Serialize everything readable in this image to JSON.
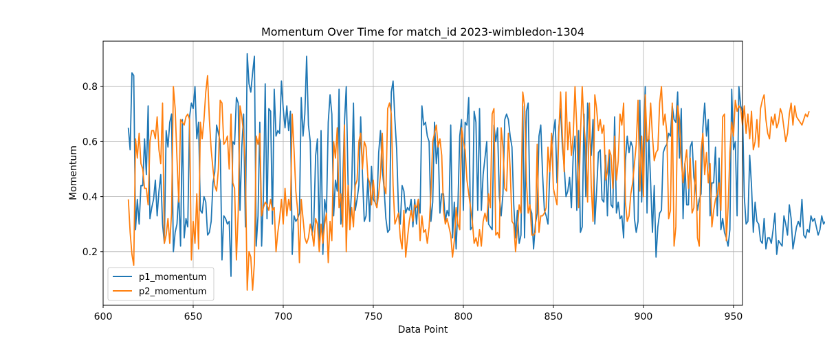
{
  "chart_data": {
    "type": "line",
    "title": "Momentum Over Time for match_id 2023-wimbledon-1304",
    "xlabel": "Data Point",
    "ylabel": "Momentum",
    "xlim": [
      600,
      955
    ],
    "ylim": [
      0.005,
      0.965
    ],
    "xticks": [
      600,
      650,
      700,
      750,
      800,
      850,
      900,
      950
    ],
    "yticks": [
      0.2,
      0.4,
      0.6,
      0.8
    ],
    "grid": true,
    "legend_position": "lower-left",
    "x_start": 614,
    "series": [
      {
        "name": "p1_momentum",
        "color": "#1f77b4",
        "values": [
          0.65,
          0.57,
          0.85,
          0.84,
          0.28,
          0.39,
          0.3,
          0.44,
          0.44,
          0.61,
          0.48,
          0.73,
          0.32,
          0.36,
          0.39,
          0.46,
          0.33,
          0.42,
          0.48,
          0.3,
          0.23,
          0.64,
          0.58,
          0.67,
          0.7,
          0.2,
          0.27,
          0.3,
          0.41,
          0.22,
          0.68,
          0.25,
          0.32,
          0.29,
          0.69,
          0.74,
          0.72,
          0.8,
          0.61,
          0.67,
          0.35,
          0.34,
          0.4,
          0.38,
          0.26,
          0.27,
          0.31,
          0.45,
          0.49,
          0.66,
          0.63,
          0.6,
          0.17,
          0.33,
          0.32,
          0.3,
          0.31,
          0.11,
          0.6,
          0.59,
          0.76,
          0.74,
          0.35,
          0.58,
          0.7,
          0.29,
          0.92,
          0.81,
          0.78,
          0.85,
          0.91,
          0.22,
          0.33,
          0.67,
          0.22,
          0.4,
          0.81,
          0.32,
          0.72,
          0.71,
          0.3,
          0.79,
          0.62,
          0.64,
          0.63,
          0.82,
          0.72,
          0.65,
          0.73,
          0.64,
          0.71,
          0.19,
          0.33,
          0.31,
          0.32,
          0.34,
          0.76,
          0.62,
          0.7,
          0.91,
          0.66,
          0.6,
          0.26,
          0.31,
          0.55,
          0.61,
          0.23,
          0.64,
          0.19,
          0.39,
          0.34,
          0.67,
          0.77,
          0.7,
          0.33,
          0.46,
          0.42,
          0.79,
          0.3,
          0.44,
          0.67,
          0.8,
          0.45,
          0.31,
          0.43,
          0.74,
          0.35,
          0.39,
          0.44,
          0.69,
          0.48,
          0.31,
          0.33,
          0.47,
          0.31,
          0.51,
          0.39,
          0.38,
          0.36,
          0.56,
          0.64,
          0.5,
          0.43,
          0.32,
          0.27,
          0.28,
          0.78,
          0.82,
          0.68,
          0.57,
          0.35,
          0.3,
          0.44,
          0.42,
          0.34,
          0.36,
          0.35,
          0.39,
          0.29,
          0.39,
          0.3,
          0.39,
          0.34,
          0.73,
          0.66,
          0.67,
          0.62,
          0.6,
          0.31,
          0.38,
          0.67,
          0.52,
          0.6,
          0.34,
          0.41,
          0.41,
          0.31,
          0.35,
          0.33,
          0.66,
          0.25,
          0.38,
          0.21,
          0.37,
          0.62,
          0.68,
          0.35,
          0.67,
          0.66,
          0.76,
          0.28,
          0.29,
          0.71,
          0.67,
          0.35,
          0.72,
          0.35,
          0.48,
          0.54,
          0.6,
          0.3,
          0.29,
          0.28,
          0.66,
          0.6,
          0.65,
          0.4,
          0.33,
          0.41,
          0.68,
          0.7,
          0.68,
          0.62,
          0.58,
          0.37,
          0.25,
          0.35,
          0.23,
          0.26,
          0.73,
          0.25,
          0.71,
          0.74,
          0.36,
          0.34,
          0.21,
          0.3,
          0.34,
          0.62,
          0.66,
          0.48,
          0.35,
          0.33,
          0.3,
          0.49,
          0.58,
          0.63,
          0.68,
          0.45,
          0.65,
          0.72,
          0.58,
          0.51,
          0.4,
          0.42,
          0.47,
          0.36,
          0.55,
          0.62,
          0.35,
          0.64,
          0.27,
          0.29,
          0.7,
          0.4,
          0.74,
          0.64,
          0.55,
          0.68,
          0.3,
          0.42,
          0.56,
          0.57,
          0.39,
          0.38,
          0.55,
          0.33,
          0.56,
          0.37,
          0.36,
          0.69,
          0.34,
          0.38,
          0.32,
          0.33,
          0.25,
          0.53,
          0.62,
          0.56,
          0.6,
          0.58,
          0.32,
          0.27,
          0.31,
          0.75,
          0.38,
          0.6,
          0.8,
          0.34,
          0.62,
          0.45,
          0.27,
          0.44,
          0.18,
          0.29,
          0.34,
          0.35,
          0.56,
          0.58,
          0.59,
          0.63,
          0.62,
          0.73,
          0.68,
          0.67,
          0.78,
          0.54,
          0.72,
          0.32,
          0.52,
          0.37,
          0.37,
          0.58,
          0.6,
          0.47,
          0.43,
          0.35,
          0.39,
          0.41,
          0.65,
          0.74,
          0.62,
          0.68,
          0.33,
          0.45,
          0.45,
          0.58,
          0.33,
          0.54,
          0.28,
          0.32,
          0.27,
          0.25,
          0.22,
          0.28,
          0.79,
          0.57,
          0.6,
          0.33,
          0.8,
          0.73,
          0.71,
          0.4,
          0.3,
          0.31,
          0.55,
          0.44,
          0.27,
          0.38,
          0.31,
          0.3,
          0.24,
          0.23,
          0.32,
          0.21,
          0.25,
          0.25,
          0.23,
          0.28,
          0.34,
          0.19,
          0.24,
          0.23,
          0.22,
          0.33,
          0.3,
          0.26,
          0.37,
          0.32,
          0.21,
          0.25,
          0.29,
          0.31,
          0.29,
          0.39,
          0.26,
          0.25,
          0.28,
          0.27,
          0.33,
          0.31,
          0.32,
          0.29,
          0.26,
          0.28,
          0.33,
          0.3,
          0.31
        ],
        "values_note": "p1 series starting at x=614, one value per data point"
      },
      {
        "name": "p2_momentum",
        "color": "#ff7f0e",
        "values": [
          0.39,
          0.27,
          0.19,
          0.15,
          0.61,
          0.54,
          0.63,
          0.52,
          0.5,
          0.43,
          0.43,
          0.37,
          0.6,
          0.64,
          0.64,
          0.61,
          0.69,
          0.57,
          0.52,
          0.74,
          0.23,
          0.26,
          0.32,
          0.23,
          0.34,
          0.8,
          0.72,
          0.54,
          0.38,
          0.68,
          0.67,
          0.66,
          0.69,
          0.7,
          0.68,
          0.17,
          0.31,
          0.23,
          0.41,
          0.21,
          0.67,
          0.61,
          0.68,
          0.78,
          0.84,
          0.68,
          0.57,
          0.5,
          0.44,
          0.42,
          0.5,
          0.75,
          0.74,
          0.59,
          0.6,
          0.62,
          0.5,
          0.7,
          0.45,
          0.43,
          0.17,
          0.34,
          0.73,
          0.69,
          0.63,
          0.5,
          0.06,
          0.2,
          0.18,
          0.06,
          0.16,
          0.62,
          0.59,
          0.63,
          0.33,
          0.36,
          0.38,
          0.37,
          0.35,
          0.39,
          0.35,
          0.36,
          0.2,
          0.27,
          0.32,
          0.39,
          0.3,
          0.43,
          0.33,
          0.39,
          0.35,
          0.7,
          0.57,
          0.42,
          0.35,
          0.16,
          0.39,
          0.32,
          0.25,
          0.23,
          0.25,
          0.3,
          0.27,
          0.22,
          0.32,
          0.3,
          0.2,
          0.3,
          0.23,
          0.3,
          0.34,
          0.16,
          0.31,
          0.24,
          0.6,
          0.54,
          0.65,
          0.36,
          0.41,
          0.29,
          0.66,
          0.2,
          0.44,
          0.28,
          0.36,
          0.29,
          0.44,
          0.46,
          0.6,
          0.63,
          0.5,
          0.6,
          0.58,
          0.47,
          0.45,
          0.37,
          0.46,
          0.38,
          0.36,
          0.41,
          0.48,
          0.63,
          0.44,
          0.41,
          0.72,
          0.74,
          0.7,
          0.44,
          0.3,
          0.32,
          0.34,
          0.25,
          0.21,
          0.35,
          0.18,
          0.25,
          0.31,
          0.35,
          0.31,
          0.37,
          0.36,
          0.39,
          0.24,
          0.33,
          0.27,
          0.28,
          0.23,
          0.29,
          0.41,
          0.6,
          0.63,
          0.66,
          0.58,
          0.61,
          0.55,
          0.35,
          0.3,
          0.32,
          0.29,
          0.26,
          0.18,
          0.24,
          0.36,
          0.3,
          0.28,
          0.65,
          0.6,
          0.57,
          0.46,
          0.41,
          0.36,
          0.31,
          0.23,
          0.25,
          0.22,
          0.28,
          0.22,
          0.31,
          0.34,
          0.31,
          0.41,
          0.36,
          0.7,
          0.72,
          0.26,
          0.27,
          0.25,
          0.65,
          0.58,
          0.43,
          0.42,
          0.63,
          0.5,
          0.31,
          0.3,
          0.2,
          0.28,
          0.37,
          0.34,
          0.78,
          0.73,
          0.46,
          0.34,
          0.37,
          0.26,
          0.26,
          0.27,
          0.59,
          0.27,
          0.33,
          0.33,
          0.34,
          0.36,
          0.58,
          0.49,
          0.63,
          0.43,
          0.4,
          0.37,
          0.63,
          0.78,
          0.62,
          0.49,
          0.78,
          0.57,
          0.67,
          0.55,
          0.62,
          0.8,
          0.65,
          0.36,
          0.62,
          0.8,
          0.66,
          0.58,
          0.38,
          0.74,
          0.44,
          0.31,
          0.77,
          0.72,
          0.64,
          0.68,
          0.63,
          0.66,
          0.46,
          0.49,
          0.57,
          0.55,
          0.43,
          0.62,
          0.46,
          0.53,
          0.7,
          0.66,
          0.74,
          0.38,
          0.31,
          0.33,
          0.41,
          0.45,
          0.52,
          0.59,
          0.75,
          0.42,
          0.62,
          0.4,
          0.77,
          0.6,
          0.61,
          0.74,
          0.62,
          0.53,
          0.56,
          0.57,
          0.74,
          0.8,
          0.66,
          0.7,
          0.63,
          0.32,
          0.35,
          0.74,
          0.22,
          0.29,
          0.73,
          0.68,
          0.53,
          0.45,
          0.52,
          0.57,
          0.43,
          0.54,
          0.34,
          0.36,
          0.53,
          0.25,
          0.22,
          0.57,
          0.63,
          0.48,
          0.56,
          0.45,
          0.52,
          0.29,
          0.35,
          0.39,
          0.41,
          0.45,
          0.35,
          0.69,
          0.7,
          0.24,
          0.36,
          0.56,
          0.67,
          0.62,
          0.75,
          0.71,
          0.73,
          0.72,
          0.66,
          0.73,
          0.63,
          0.7,
          0.61,
          0.71,
          0.57,
          0.6,
          0.68,
          0.58,
          0.72,
          0.75,
          0.77,
          0.68,
          0.63,
          0.61,
          0.69,
          0.66,
          0.7,
          0.65,
          0.67,
          0.72,
          0.7,
          0.65,
          0.6,
          0.63,
          0.7,
          0.74,
          0.66,
          0.73,
          0.69,
          0.68,
          0.67,
          0.66,
          0.68,
          0.7,
          0.69,
          0.71
        ],
        "values_note": "p2 series starting at x=614, one value per data point"
      }
    ]
  }
}
